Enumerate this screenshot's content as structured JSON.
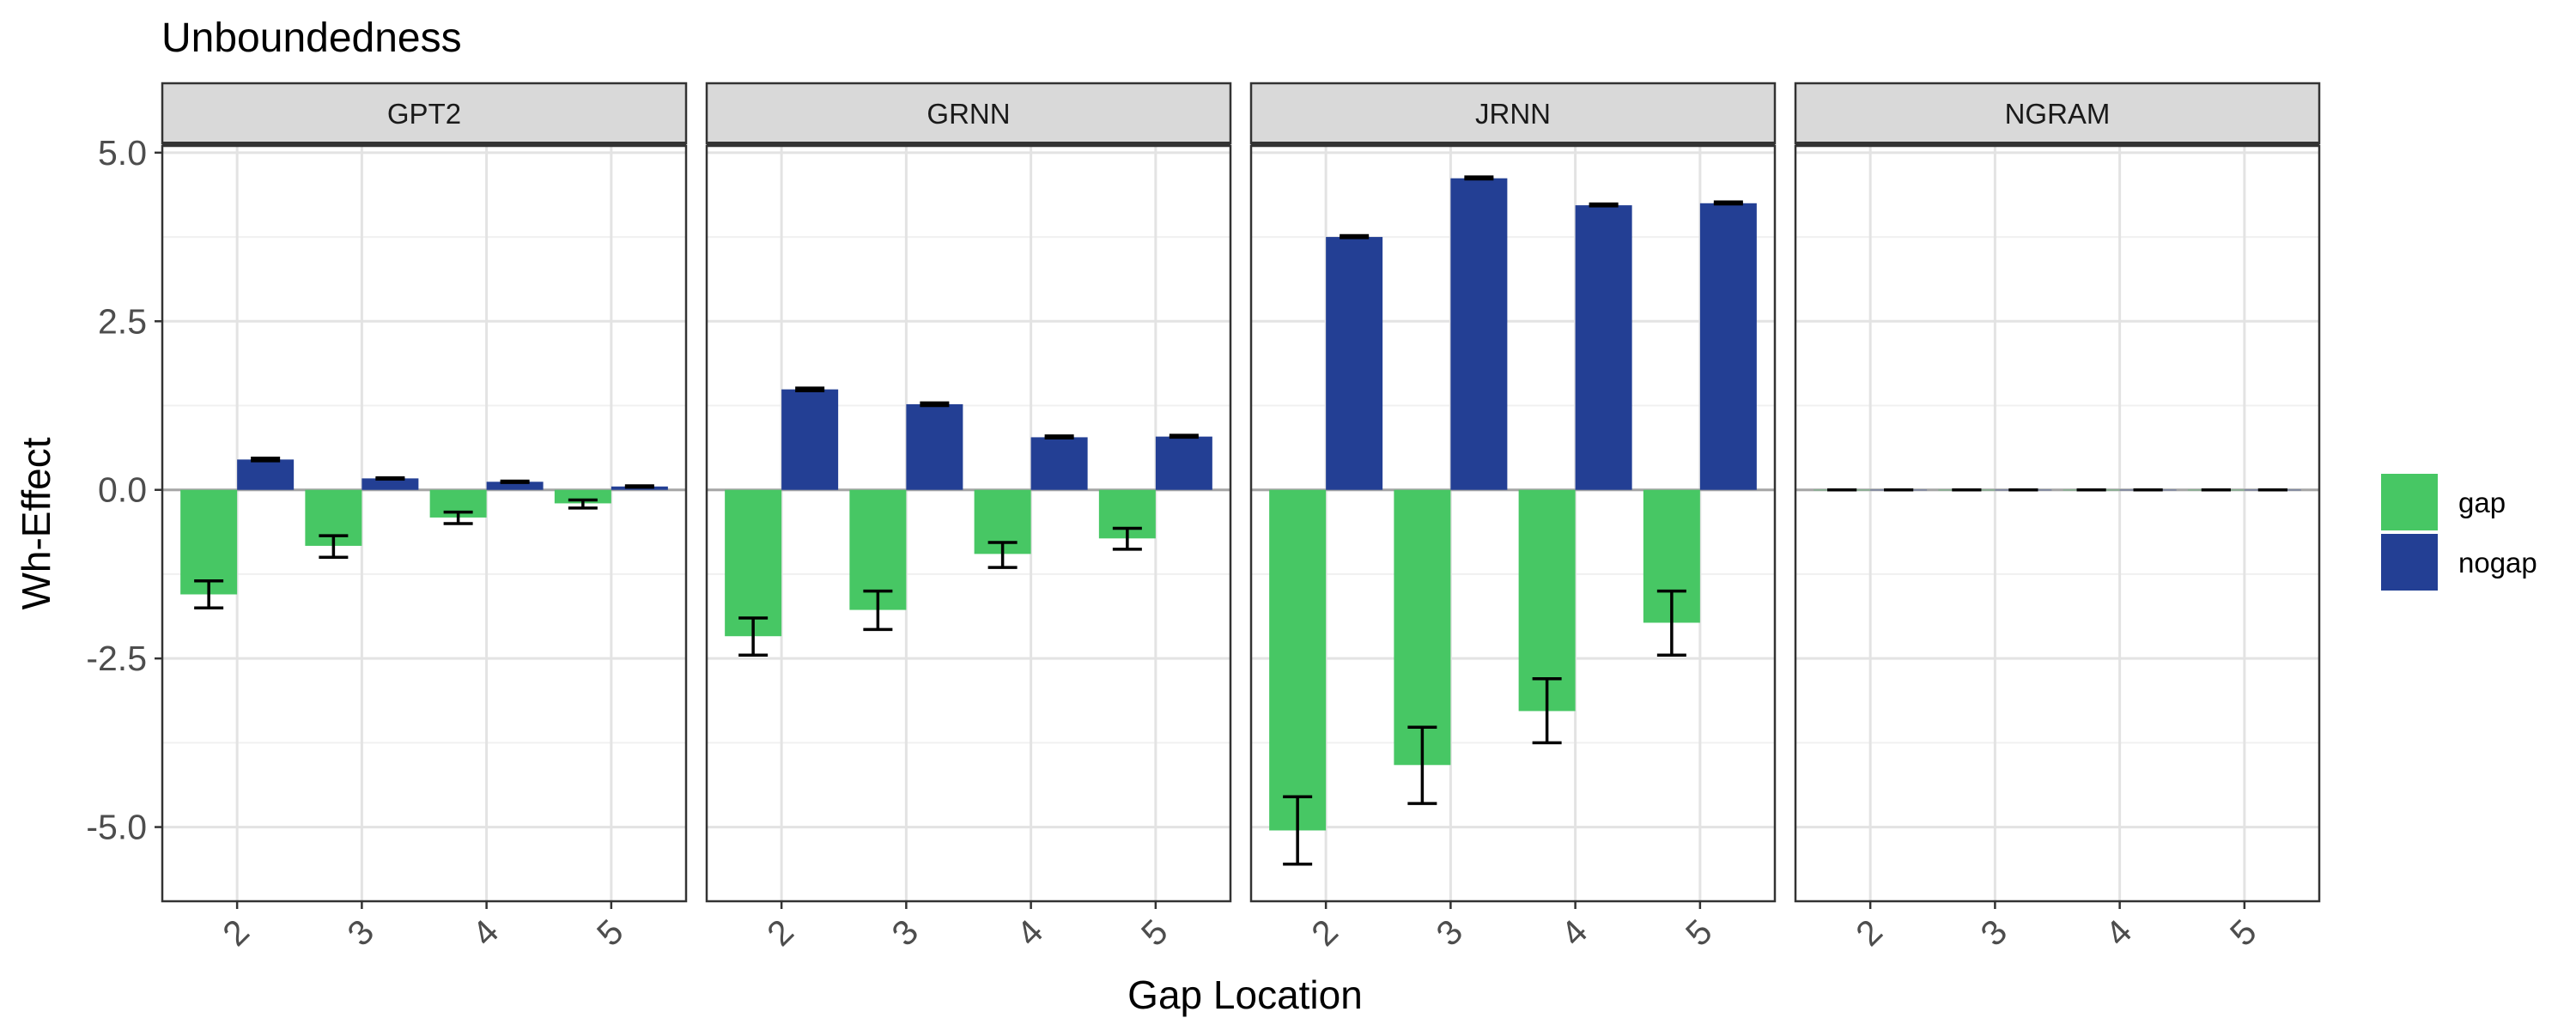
{
  "chart_data": {
    "type": "bar",
    "title": "Unboundedness",
    "xlabel": "Gap Location",
    "ylabel": "Wh-Effect",
    "ylim": [
      -6.1,
      5.1
    ],
    "yticks": [
      5.0,
      2.5,
      0.0,
      -2.5,
      -5.0
    ],
    "ytick_labels": [
      "5.0",
      "2.5",
      "0.0",
      "-2.5",
      "-5.0"
    ],
    "categories": [
      "2",
      "3",
      "4",
      "5"
    ],
    "grid": true,
    "legend_position": "right",
    "colors": {
      "gap": "#47c764",
      "nogap": "#233f94"
    },
    "panels": [
      {
        "name": "GPT2",
        "series": [
          {
            "name": "gap",
            "values": [
              -1.55,
              -0.83,
              -0.41,
              -0.2
            ],
            "err_low": [
              -1.75,
              -1.0,
              -0.5,
              -0.27
            ],
            "err_high": [
              -1.35,
              -0.68,
              -0.33,
              -0.15
            ]
          },
          {
            "name": "nogap",
            "values": [
              0.45,
              0.17,
              0.12,
              0.05
            ],
            "err_low": [
              0.43,
              0.16,
              0.11,
              0.04
            ],
            "err_high": [
              0.47,
              0.18,
              0.13,
              0.06
            ]
          }
        ]
      },
      {
        "name": "GRNN",
        "series": [
          {
            "name": "gap",
            "values": [
              -2.17,
              -1.78,
              -0.95,
              -0.72
            ],
            "err_low": [
              -2.45,
              -2.07,
              -1.15,
              -0.88
            ],
            "err_high": [
              -1.9,
              -1.5,
              -0.78,
              -0.57
            ]
          },
          {
            "name": "nogap",
            "values": [
              1.49,
              1.27,
              0.78,
              0.79
            ],
            "err_low": [
              1.47,
              1.25,
              0.77,
              0.78
            ],
            "err_high": [
              1.51,
              1.29,
              0.8,
              0.81
            ]
          }
        ]
      },
      {
        "name": "JRNN",
        "series": [
          {
            "name": "gap",
            "values": [
              -5.05,
              -4.08,
              -3.28,
              -1.97
            ],
            "err_low": [
              -5.55,
              -4.65,
              -3.75,
              -2.45
            ],
            "err_high": [
              -4.55,
              -3.52,
              -2.8,
              -1.5
            ]
          },
          {
            "name": "nogap",
            "values": [
              3.75,
              4.62,
              4.22,
              4.25
            ],
            "err_low": [
              3.74,
              4.61,
              4.21,
              4.24
            ],
            "err_high": [
              3.77,
              4.64,
              4.24,
              4.27
            ]
          }
        ]
      },
      {
        "name": "NGRAM",
        "series": [
          {
            "name": "gap",
            "values": [
              0,
              0,
              0,
              0
            ],
            "err_low": [
              0,
              0,
              0,
              0
            ],
            "err_high": [
              0,
              0,
              0,
              0
            ]
          },
          {
            "name": "nogap",
            "values": [
              0,
              0,
              0,
              0
            ],
            "err_low": [
              0,
              0,
              0,
              0
            ],
            "err_high": [
              0,
              0,
              0,
              0
            ]
          }
        ]
      }
    ],
    "legend": [
      {
        "name": "gap",
        "label": "gap"
      },
      {
        "name": "nogap",
        "label": "nogap"
      }
    ]
  }
}
